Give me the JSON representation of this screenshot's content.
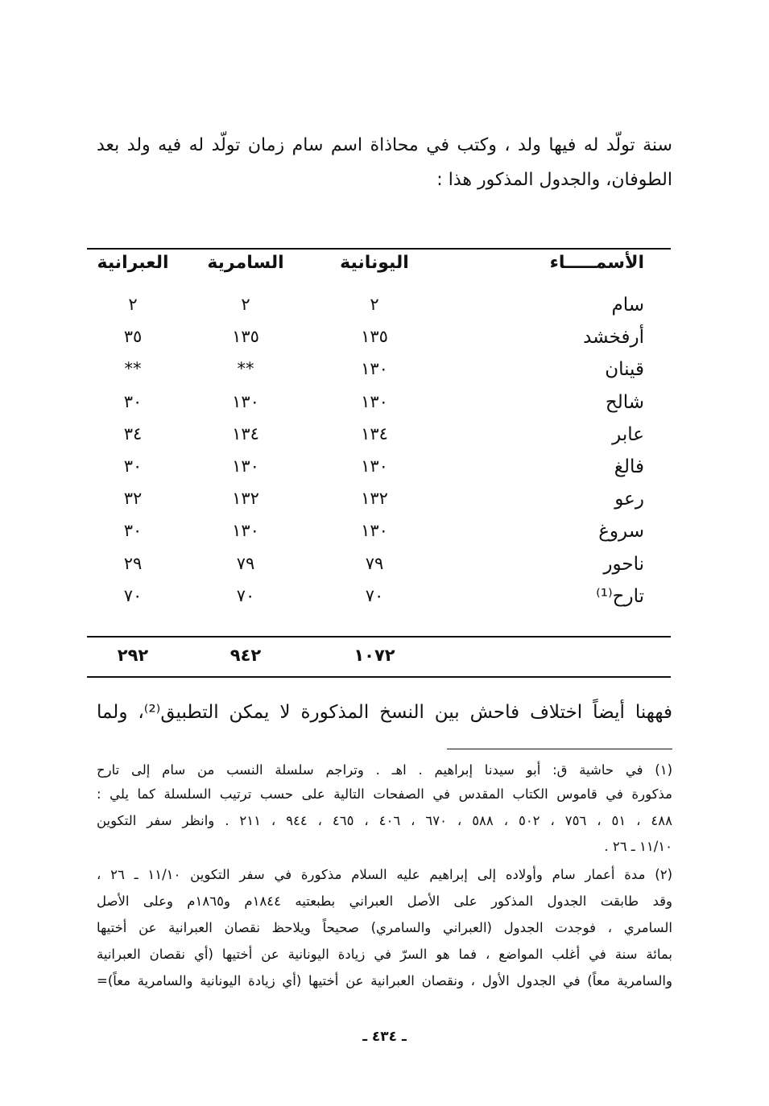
{
  "intro": [
    "سنة تولّد له فيها ولد ، وكتب في محاذاة اسم سام زمان تولّد له فيه ولد بعد",
    "الطوفان، والجدول المذكور هذا :"
  ],
  "table": {
    "headers": [
      "الأسمـــــاء",
      "اليونانية",
      "السامرية",
      "العبرانية"
    ],
    "rows": [
      {
        "name": "سام",
        "greek": "٢",
        "samaritan": "٢",
        "hebrew": "٢"
      },
      {
        "name": "أرفخشد",
        "greek": "١٣٥",
        "samaritan": "١٣٥",
        "hebrew": "٣٥"
      },
      {
        "name": "قينان",
        "greek": "١٣٠",
        "samaritan": "**",
        "hebrew": "**"
      },
      {
        "name": "شالح",
        "greek": "١٣٠",
        "samaritan": "١٣٠",
        "hebrew": "٣٠"
      },
      {
        "name": "عابر",
        "greek": "١٣٤",
        "samaritan": "١٣٤",
        "hebrew": "٣٤"
      },
      {
        "name": "فالغ",
        "greek": "١٣٠",
        "samaritan": "١٣٠",
        "hebrew": "٣٠"
      },
      {
        "name": "رعو",
        "greek": "١٣٢",
        "samaritan": "١٣٢",
        "hebrew": "٣٢"
      },
      {
        "name": "سروغ",
        "greek": "١٣٠",
        "samaritan": "١٣٠",
        "hebrew": "٣٠"
      },
      {
        "name": "ناحور",
        "greek": "٧٩",
        "samaritan": "٧٩",
        "hebrew": "٢٩"
      },
      {
        "name": "تارح⁽¹⁾",
        "greek": "٧٠",
        "samaritan": "٧٠",
        "hebrew": "٧٠"
      }
    ],
    "totals": {
      "greek": "١٠٧٢",
      "samaritan": "٩٤٢",
      "hebrew": "٢٩٢"
    }
  },
  "after_table": "فههنا أيضاً اختلاف فاحش بين النسخ المذكورة لا يمكن التطبيق⁽²⁾، ولما",
  "footnotes": [
    "(١) في حاشية ق: أبو سيدنا إبراهيم . اهـ . وتراجم سلسلة النسب من سام إلى تارح",
    "مذكورة في قاموس الكتاب المقدس في الصفحات التالية على حسب ترتيب السلسلة كما يلي :",
    "٤٨٨ ، ٥١ ، ٧٥٦ ، ٥٠٢ ، ٥٨٨ ، ٦٧٠ ، ٤٠٦ ، ٤٦٥ ، ٩٤٤ ، ٢١١ . وانظر سفر التكوين",
    "١١/١٠ ـ ٢٦ .",
    "(٢) مدة أعمار سام وأولاده إلى إبراهيم عليه السلام مذكورة في سفر التكوين ١١/١٠ ـ ٢٦ ،",
    "وقد طابقت الجدول المذكور على الأصل العبراني بطبعتيه ١٨٤٤م و١٨٦٥م وعلى الأصل",
    "السامري ، فوجدت الجدول (العبراني والسامري) صحيحاً ويلاحظ نقصان العبرانية عن أختيها",
    "بمائة سنة في أغلب المواضع ، فما هو السرّ في زيادة اليونانية عن أختيها (أي نقصان العبرانية",
    "والسامرية معاً) في الجدول الأول ، ونقصان العبرانية عن أختيها (أي زيادة اليونانية والسامرية معاً)="
  ],
  "page_number": "ـ ٤٣٤ ـ"
}
